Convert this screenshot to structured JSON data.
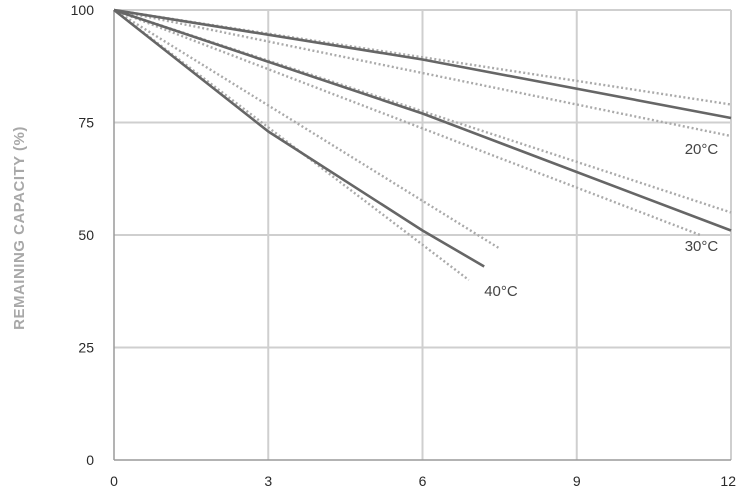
{
  "chart_data": {
    "type": "line",
    "xlabel": "",
    "ylabel": "REMAINING CAPACITY (%)",
    "xlim": [
      0,
      12
    ],
    "ylim": [
      0,
      100
    ],
    "xticks": [
      "0",
      "3",
      "6",
      "9",
      "12"
    ],
    "yticks": [
      "0",
      "25",
      "50",
      "75",
      "100"
    ],
    "grid": true,
    "series": [
      {
        "name": "20°C",
        "style": "solid",
        "color": "#666666",
        "x": [
          0,
          6,
          12
        ],
        "y": [
          100,
          89,
          76
        ]
      },
      {
        "name": "20°C",
        "style": "dotted-bound",
        "color": "#aaaaaa",
        "x": [
          0,
          12
        ],
        "y": [
          100,
          79
        ]
      },
      {
        "name": "20°C",
        "style": "dotted-bound",
        "color": "#aaaaaa",
        "x": [
          0,
          12
        ],
        "y": [
          100,
          72
        ]
      },
      {
        "name": "30°C",
        "style": "solid",
        "color": "#666666",
        "x": [
          0,
          6,
          12
        ],
        "y": [
          100,
          77,
          51
        ]
      },
      {
        "name": "30°C",
        "style": "dotted-bound",
        "color": "#aaaaaa",
        "x": [
          0,
          12
        ],
        "y": [
          100,
          55
        ]
      },
      {
        "name": "30°C",
        "style": "dotted-bound",
        "color": "#aaaaaa",
        "x": [
          0,
          11.4
        ],
        "y": [
          100,
          50
        ]
      },
      {
        "name": "40°C",
        "style": "solid",
        "color": "#666666",
        "x": [
          0,
          3,
          6,
          7.2
        ],
        "y": [
          100,
          73,
          51,
          43
        ]
      },
      {
        "name": "40°C",
        "style": "dotted-bound",
        "color": "#aaaaaa",
        "x": [
          0,
          7.5
        ],
        "y": [
          100,
          47
        ]
      },
      {
        "name": "40°C",
        "style": "dotted-bound",
        "color": "#aaaaaa",
        "x": [
          0,
          6.9
        ],
        "y": [
          100,
          40
        ]
      }
    ],
    "labels": [
      {
        "text": "20°C",
        "x": 11.1,
        "y": 68
      },
      {
        "text": "30°C",
        "x": 11.1,
        "y": 46.5
      },
      {
        "text": "40°C",
        "x": 7.2,
        "y": 36.5
      }
    ]
  }
}
